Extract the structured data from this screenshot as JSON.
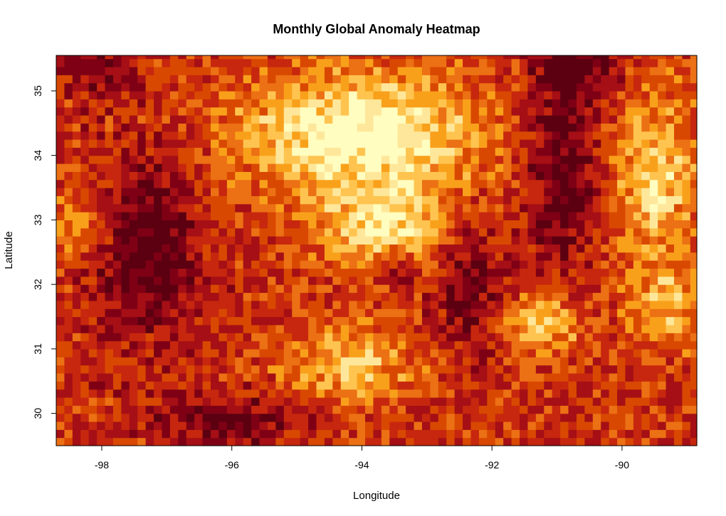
{
  "chart_data": {
    "type": "heatmap",
    "title": "Monthly Global Anomaly Heatmap",
    "xlabel": "Longitude",
    "ylabel": "Latitude",
    "xlim": [
      -98.7,
      -88.85
    ],
    "ylim": [
      29.5,
      35.55
    ],
    "x_ticks": [
      -98,
      -96,
      -94,
      -92,
      -90
    ],
    "x_tick_labels": [
      "-98",
      "-96",
      "-94",
      "-92",
      "-90"
    ],
    "y_ticks": [
      30,
      31,
      32,
      33,
      34,
      35
    ],
    "y_tick_labels": [
      "30",
      "31",
      "32",
      "33",
      "34",
      "35"
    ],
    "grid": false,
    "legend": "none",
    "cell_size_deg": [
      0.125,
      0.125
    ],
    "colormap": [
      "#fffdbf",
      "#fee79a",
      "#fec44f",
      "#f9a01b",
      "#ec7014",
      "#d94801",
      "#c7270e",
      "#a50f15",
      "#7f0015",
      "#5c0011"
    ],
    "value_range": [
      0,
      1
    ],
    "field_description_levels": "values 0 (pale yellow) to 1 (dark maroon)"
  }
}
